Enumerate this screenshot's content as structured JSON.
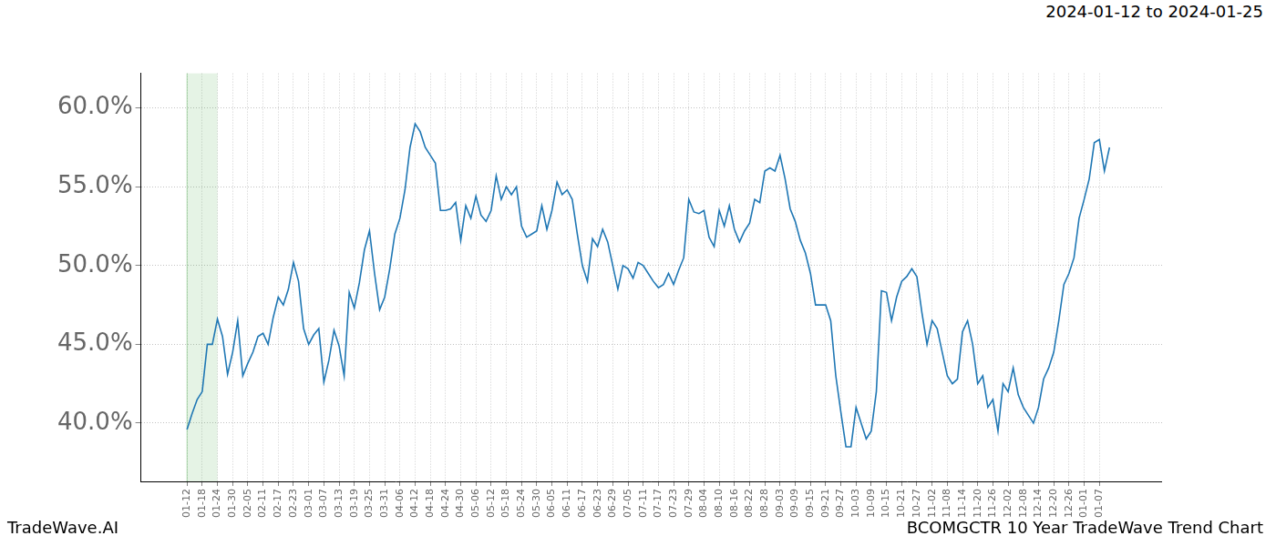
{
  "chart_data": {
    "type": "line",
    "title": "2024-01-12 to 2024-01-25",
    "annotations": [
      "TradeWave.AI",
      "BCOMGCTR 10 Year TradeWave Trend Chart"
    ],
    "highlight": {
      "from": "01-12",
      "to": "01-24"
    },
    "categories": [
      "01-12",
      null,
      null,
      "01-18",
      null,
      null,
      "01-24",
      null,
      null,
      "01-30",
      null,
      null,
      "02-05",
      null,
      null,
      "02-11",
      null,
      null,
      "02-17",
      null,
      null,
      "02-23",
      null,
      null,
      "03-01",
      null,
      null,
      "03-07",
      null,
      null,
      "03-13",
      null,
      null,
      "03-19",
      null,
      null,
      "03-25",
      null,
      null,
      "03-31",
      null,
      null,
      "04-06",
      null,
      null,
      "04-12",
      null,
      null,
      "04-18",
      null,
      null,
      "04-24",
      null,
      null,
      "04-30",
      null,
      null,
      "05-06",
      null,
      null,
      "05-12",
      null,
      null,
      "05-18",
      null,
      null,
      "05-24",
      null,
      null,
      "05-30",
      null,
      null,
      "06-05",
      null,
      null,
      "06-11",
      null,
      null,
      "06-17",
      null,
      null,
      "06-23",
      null,
      null,
      "06-29",
      null,
      null,
      "07-05",
      null,
      null,
      "07-11",
      null,
      null,
      "07-17",
      null,
      null,
      "07-23",
      null,
      null,
      "07-29",
      null,
      null,
      "08-04",
      null,
      null,
      "08-10",
      null,
      null,
      "08-16",
      null,
      null,
      "08-22",
      null,
      null,
      "08-28",
      null,
      null,
      "09-03",
      null,
      null,
      "09-09",
      null,
      null,
      "09-15",
      null,
      null,
      "09-21",
      null,
      null,
      "09-27",
      null,
      null,
      "10-03",
      null,
      null,
      "10-09",
      null,
      null,
      "10-15",
      null,
      null,
      "10-21",
      null,
      null,
      "10-27",
      null,
      null,
      "11-02",
      null,
      null,
      "11-08",
      null,
      null,
      "11-14",
      null,
      null,
      "11-20",
      null,
      null,
      "11-26",
      null,
      null,
      "12-02",
      null,
      null,
      "12-08",
      null,
      null,
      "12-14",
      null,
      null,
      "12-20",
      null,
      null,
      "12-26",
      null,
      null,
      "01-01",
      null,
      null,
      "01-07",
      null,
      null
    ],
    "values": [
      39.6,
      40.6,
      41.5,
      42.0,
      45.0,
      45.0,
      46.6,
      45.5,
      43.1,
      44.5,
      46.5,
      43.0,
      43.8,
      44.5,
      45.5,
      45.7,
      45.0,
      46.7,
      48.0,
      47.5,
      48.5,
      50.2,
      49.0,
      46.0,
      45.0,
      45.6,
      46.0,
      42.6,
      44.0,
      45.9,
      44.9,
      43.0,
      48.3,
      47.3,
      48.9,
      51.0,
      52.2,
      49.5,
      47.2,
      48.0,
      49.8,
      52.0,
      53.0,
      54.8,
      57.5,
      59.0,
      58.5,
      57.5,
      57.0,
      56.5,
      53.5,
      53.5,
      53.6,
      54.0,
      51.6,
      53.8,
      53.0,
      54.4,
      53.2,
      52.8,
      53.5,
      55.7,
      54.2,
      55.0,
      54.5,
      55.0,
      52.5,
      51.8,
      52.0,
      52.2,
      53.8,
      52.3,
      53.5,
      55.3,
      54.5,
      54.8,
      54.2,
      52.0,
      50.0,
      49.0,
      51.7,
      51.2,
      52.3,
      51.5,
      50.0,
      48.5,
      50.0,
      49.8,
      49.2,
      50.2,
      50.0,
      49.5,
      49.0,
      48.6,
      48.8,
      49.5,
      48.8,
      49.7,
      50.5,
      54.2,
      53.4,
      53.3,
      53.5,
      51.8,
      51.2,
      53.5,
      52.5,
      53.8,
      52.3,
      51.5,
      52.2,
      52.7,
      54.2,
      54.0,
      56.0,
      56.2,
      56.0,
      57.0,
      55.5,
      53.6,
      52.8,
      51.6,
      50.8,
      49.5,
      47.5,
      47.5,
      47.5,
      46.5,
      43.0,
      40.7,
      38.5,
      38.5,
      41.0,
      40.0,
      39.0,
      39.5,
      42.0,
      48.4,
      48.3,
      46.5,
      48.0,
      49.0,
      49.3,
      49.8,
      49.3,
      47.0,
      45.0,
      46.5,
      46.0,
      44.5,
      43.0,
      42.5,
      42.8,
      45.8,
      46.5,
      45.0,
      42.5,
      43.0,
      41.0,
      41.5,
      39.5,
      42.5,
      42.0,
      43.5,
      41.8,
      41.0,
      40.5,
      40.0,
      41.0,
      42.8,
      43.5,
      44.5,
      46.5,
      48.8,
      49.5,
      50.5,
      53.0,
      54.2,
      55.5,
      57.8,
      58.0,
      56.0,
      57.5
    ],
    "color": "#1f77b4",
    "ylim": [
      36.3,
      62.2
    ],
    "yticks": [
      {
        "value": 40,
        "label": "40.0%"
      },
      {
        "value": 45,
        "label": "45.0%"
      },
      {
        "value": 50,
        "label": "50.0%"
      },
      {
        "value": 55,
        "label": "55.0%"
      },
      {
        "value": 60,
        "label": "60.0%"
      }
    ],
    "grid": true
  }
}
